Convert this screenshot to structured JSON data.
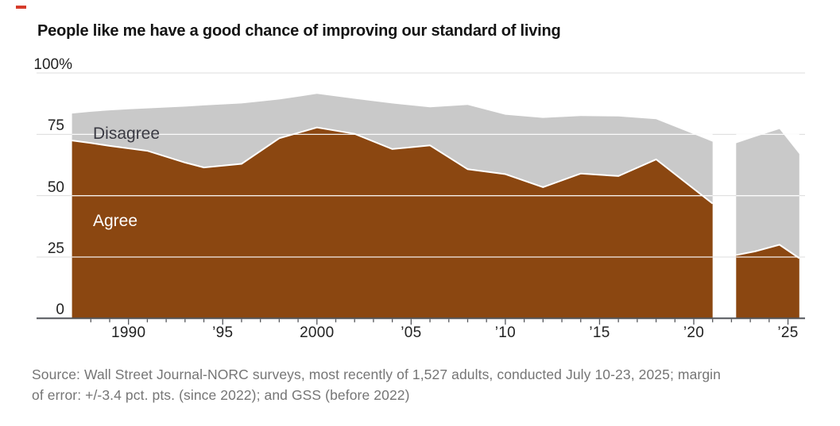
{
  "accent": {
    "kicker_color": "#d63b2a"
  },
  "title": "People like me have a good chance of improving our standard of living",
  "source": {
    "line1": "Source: Wall Street Journal-NORC surveys, most recently of 1,527 adults, conducted July 10-23, 2025; margin",
    "line2": "of error: +/-3.4 pct. pts. (since 2022); and GSS (before 2022)"
  },
  "chart_data": {
    "type": "area",
    "stacked": true,
    "title": "People like me have a good chance of improving our standard of living",
    "grid": "horizontal",
    "colors": {
      "agree_fill": "#8b4711",
      "disagree_fill": "#c9c9c9",
      "gridline_light": "#dcdcdc",
      "gridline_over_area": "#ffffff",
      "axis_line": "#54565b",
      "boundary_stroke": "#ffffff"
    },
    "area_labels": {
      "disagree": "Disagree",
      "agree": "Agree"
    },
    "y_axis": {
      "ticks": [
        "100%",
        "75",
        "50",
        "25",
        "0"
      ],
      "tick_values": [
        100,
        75,
        50,
        25,
        0
      ],
      "range": [
        0,
        100
      ]
    },
    "x_axis": {
      "tick_labels": [
        "1990",
        "’95",
        "2000",
        "’05",
        "’10",
        "’15",
        "’20",
        "’25"
      ],
      "tick_years": [
        1990,
        1995,
        2000,
        2005,
        2010,
        2015,
        2020,
        2025
      ],
      "minor_tick_years_start": 1988,
      "minor_tick_years_end": 2025,
      "range_years": [
        1987,
        2025.6
      ]
    },
    "segments": [
      {
        "name": "GSS (before 2022)",
        "points": [
          {
            "year": 1987,
            "agree": 72.5,
            "disagree": 11.0
          },
          {
            "year": 1988,
            "agree": 71.5,
            "disagree": 12.7
          },
          {
            "year": 1989,
            "agree": 70.3,
            "disagree": 14.5
          },
          {
            "year": 1990,
            "agree": 69.3,
            "disagree": 15.9
          },
          {
            "year": 1991,
            "agree": 68.3,
            "disagree": 17.3
          },
          {
            "year": 1993,
            "agree": 63.5,
            "disagree": 22.8
          },
          {
            "year": 1994,
            "agree": 61.5,
            "disagree": 25.3
          },
          {
            "year": 1996,
            "agree": 63.0,
            "disagree": 24.6
          },
          {
            "year": 1998,
            "agree": 73.4,
            "disagree": 15.8
          },
          {
            "year": 2000,
            "agree": 77.8,
            "disagree": 13.7
          },
          {
            "year": 2002,
            "agree": 75.2,
            "disagree": 14.3
          },
          {
            "year": 2004,
            "agree": 69.0,
            "disagree": 18.6
          },
          {
            "year": 2006,
            "agree": 70.5,
            "disagree": 15.5
          },
          {
            "year": 2008,
            "agree": 60.8,
            "disagree": 26.2
          },
          {
            "year": 2010,
            "agree": 58.8,
            "disagree": 24.2
          },
          {
            "year": 2012,
            "agree": 53.5,
            "disagree": 28.2
          },
          {
            "year": 2014,
            "agree": 59.0,
            "disagree": 23.5
          },
          {
            "year": 2016,
            "agree": 58.0,
            "disagree": 24.3
          },
          {
            "year": 2018,
            "agree": 64.8,
            "disagree": 16.4
          },
          {
            "year": 2021,
            "agree": 46.8,
            "disagree": 25.2
          }
        ]
      },
      {
        "name": "WSJ-NORC (since 2022)",
        "points": [
          {
            "year": 2022.25,
            "agree": 25.8,
            "disagree": 45.6
          },
          {
            "year": 2023.25,
            "agree": 27.3,
            "disagree": 46.7
          },
          {
            "year": 2024.55,
            "agree": 30.0,
            "disagree": 47.2
          },
          {
            "year": 2025.6,
            "agree": 24.5,
            "disagree": 42.5
          }
        ]
      }
    ]
  }
}
